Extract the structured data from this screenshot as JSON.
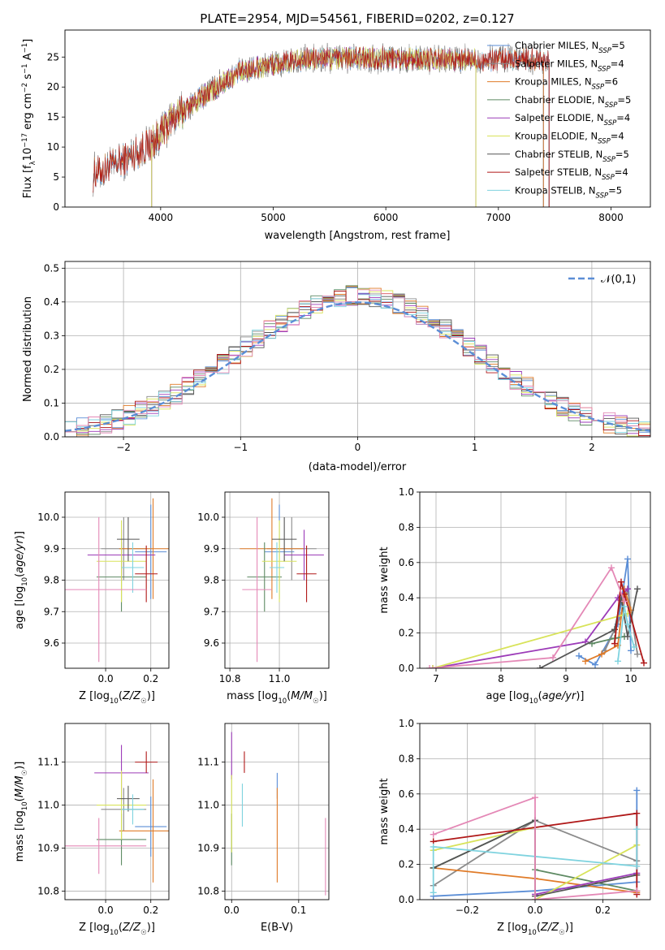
{
  "figure_title": "PLATE=2954, MJD=54561, FIBERID=0202, z=0.127",
  "colors": {
    "chabrier_miles": "#5b8ed6",
    "salpeter_miles": "#8b8b8b",
    "kroupa_miles": "#e07b28",
    "chabrier_elodie": "#5e8a63",
    "salpeter_elodie": "#9c3bb8",
    "kroupa_elodie": "#d8e35a",
    "chabrier_stelib": "#555555",
    "salpeter_stelib": "#b01818",
    "kroupa_stelib": "#7fd3df",
    "pink": "#e488b6",
    "gaussian": "#5b8ed6"
  },
  "chart_data": [
    {
      "id": "spectrum",
      "type": "line",
      "title": "PLATE=2954, MJD=54561, FIBERID=0202, z=0.127",
      "xlabel": "wavelength [Angstrom, rest frame]",
      "ylabel": "Flux [f_λ 10^-17 erg cm^-2 s^-1 A^-1]",
      "xlim": [
        3150,
        8350
      ],
      "ylim": [
        0,
        29.5
      ],
      "xticks": [
        4000,
        5000,
        6000,
        7000,
        8000
      ],
      "yticks": [
        0,
        5,
        10,
        15,
        20,
        25
      ],
      "legend_position": "top-right",
      "legend": [
        {
          "label": "Chabrier MILES, N_SSP=5",
          "color": "#5b8ed6"
        },
        {
          "label": "Salpeter MILES, N_SSP=4",
          "color": "#8b8b8b"
        },
        {
          "label": "Kroupa MILES, N_SSP=6",
          "color": "#e07b28"
        },
        {
          "label": "Chabrier ELODIE, N_SSP=5",
          "color": "#5e8a63"
        },
        {
          "label": "Salpeter ELODIE, N_SSP=4",
          "color": "#9c3bb8"
        },
        {
          "label": "Kroupa ELODIE, N_SSP=4",
          "color": "#d8e35a"
        },
        {
          "label": "Chabrier STELIB, N_SSP=5",
          "color": "#555555"
        },
        {
          "label": "Salpeter STELIB, N_SSP=4",
          "color": "#b01818"
        },
        {
          "label": "Kroupa STELIB, N_SSP=5",
          "color": "#7fd3df"
        }
      ],
      "continuum": {
        "x": [
          3400,
          3600,
          3800,
          3950,
          4100,
          4300,
          4500,
          4700,
          4900,
          5100,
          5300,
          5600,
          6000,
          6400,
          6800,
          7200,
          7600
        ],
        "y": [
          5.5,
          7.0,
          9.2,
          11.0,
          14.5,
          17.5,
          20.0,
          22.5,
          23.5,
          24.0,
          24.6,
          24.8,
          24.8,
          24.6,
          24.5,
          24.8,
          24.5
        ]
      },
      "series_coverage": [
        {
          "name": "Chabrier MILES",
          "x_range": [
            3400,
            7400
          ]
        },
        {
          "name": "Salpeter MILES",
          "x_range": [
            3400,
            7400
          ]
        },
        {
          "name": "Kroupa MILES",
          "x_range": [
            3400,
            7400
          ]
        },
        {
          "name": "Chabrier ELODIE",
          "x_range": [
            3920,
            6800
          ]
        },
        {
          "name": "Salpeter ELODIE",
          "x_range": [
            3920,
            6800
          ]
        },
        {
          "name": "Kroupa ELODIE",
          "x_range": [
            3920,
            6800
          ]
        },
        {
          "name": "Chabrier STELIB",
          "x_range": [
            3400,
            7450
          ]
        },
        {
          "name": "Salpeter STELIB",
          "x_range": [
            3400,
            7450
          ]
        },
        {
          "name": "Kroupa STELIB",
          "x_range": [
            3400,
            7450
          ]
        }
      ]
    },
    {
      "id": "residuals",
      "type": "line",
      "xlabel": "(data-model)/error",
      "ylabel": "Normed distribution",
      "xlim": [
        -2.5,
        2.5
      ],
      "ylim": [
        0,
        0.52
      ],
      "xticks": [
        -2,
        -1,
        0,
        1,
        2
      ],
      "yticks": [
        0.0,
        0.1,
        0.2,
        0.3,
        0.4,
        0.5
      ],
      "grid": true,
      "legend_position": "top-right",
      "legend": [
        {
          "label": "𝒩(0,1)",
          "color": "#5b8ed6",
          "style": "dashed"
        }
      ],
      "histogram_bin_width": 0.1,
      "histogram_series": [
        "Chabrier MILES",
        "Salpeter MILES",
        "Kroupa MILES",
        "Chabrier ELODIE",
        "Salpeter ELODIE",
        "Kroupa ELODIE",
        "Chabrier STELIB",
        "Salpeter STELIB",
        "Kroupa STELIB"
      ]
    },
    {
      "id": "age_vs_Z",
      "type": "scatter",
      "xlabel": "Z [log10(Z/Z☉)]",
      "ylabel": "age [log10(age/yr)]",
      "xlim": [
        -0.18,
        0.28
      ],
      "ylim": [
        9.52,
        10.08
      ],
      "xticks": [
        0.0,
        0.2
      ],
      "yticks": [
        9.6,
        9.7,
        9.8,
        9.9,
        10.0
      ],
      "grid": true,
      "points": [
        {
          "series": "Chabrier MILES",
          "color": "#5b8ed6",
          "x": 0.2,
          "y": 9.89,
          "xerr": 0.07,
          "yerr": 0.15
        },
        {
          "series": "Salpeter MILES",
          "color": "#8b8b8b",
          "x": 0.08,
          "y": 9.9,
          "xerr": 0.1,
          "yerr": 0.1
        },
        {
          "series": "Kroupa MILES",
          "color": "#e07b28",
          "x": 0.21,
          "y": 9.9,
          "xerr": 0.15,
          "yerr": 0.16
        },
        {
          "series": "Chabrier ELODIE",
          "color": "#5e8a63",
          "x": 0.07,
          "y": 9.81,
          "xerr": 0.11,
          "yerr": 0.11
        },
        {
          "series": "Salpeter ELODIE",
          "color": "#9c3bb8",
          "x": 0.07,
          "y": 9.88,
          "xerr": 0.15,
          "yerr": 0.08
        },
        {
          "series": "Kroupa ELODIE",
          "color": "#d8e35a",
          "x": 0.07,
          "y": 9.86,
          "xerr": 0.11,
          "yerr": 0.13
        },
        {
          "series": "Chabrier STELIB",
          "color": "#555555",
          "x": 0.1,
          "y": 9.93,
          "xerr": 0.05,
          "yerr": 0.07
        },
        {
          "series": "Salpeter STELIB",
          "color": "#b01818",
          "x": 0.18,
          "y": 9.82,
          "xerr": 0.05,
          "yerr": 0.09
        },
        {
          "series": "Kroupa STELIB",
          "color": "#7fd3df",
          "x": 0.12,
          "y": 9.84,
          "xerr": 0.05,
          "yerr": 0.08
        },
        {
          "series": "",
          "color": "#e488b6",
          "x": -0.03,
          "y": 9.77,
          "xerr": 0.21,
          "yerr": 0.23
        }
      ]
    },
    {
      "id": "age_vs_mass",
      "type": "scatter",
      "xlabel": "mass [log10(M/M☉)]",
      "ylabel": "",
      "xlim": [
        10.78,
        11.2
      ],
      "ylim": [
        9.52,
        10.08
      ],
      "xticks": [
        10.8,
        11.0
      ],
      "yticks": [
        9.6,
        9.7,
        9.8,
        9.9,
        10.0
      ],
      "grid": true,
      "points": [
        {
          "series": "Chabrier MILES",
          "color": "#5b8ed6",
          "x": 11.0,
          "y": 9.89,
          "xerr": 0.06,
          "yerr": 0.15
        },
        {
          "series": "Salpeter MILES",
          "color": "#8b8b8b",
          "x": 11.05,
          "y": 9.9,
          "xerr": 0.1,
          "yerr": 0.1
        },
        {
          "series": "Kroupa MILES",
          "color": "#e07b28",
          "x": 10.97,
          "y": 9.9,
          "xerr": 0.13,
          "yerr": 0.16
        },
        {
          "series": "Chabrier ELODIE",
          "color": "#5e8a63",
          "x": 10.94,
          "y": 9.81,
          "xerr": 0.07,
          "yerr": 0.11
        },
        {
          "series": "Salpeter ELODIE",
          "color": "#9c3bb8",
          "x": 11.1,
          "y": 9.88,
          "xerr": 0.08,
          "yerr": 0.08
        },
        {
          "series": "Kroupa ELODIE",
          "color": "#d8e35a",
          "x": 11.0,
          "y": 9.86,
          "xerr": 0.07,
          "yerr": 0.13
        },
        {
          "series": "Chabrier STELIB",
          "color": "#555555",
          "x": 11.02,
          "y": 9.93,
          "xerr": 0.05,
          "yerr": 0.07
        },
        {
          "series": "Salpeter STELIB",
          "color": "#b01818",
          "x": 11.11,
          "y": 9.82,
          "xerr": 0.04,
          "yerr": 0.09
        },
        {
          "series": "Kroupa STELIB",
          "color": "#7fd3df",
          "x": 10.99,
          "y": 9.84,
          "xerr": 0.03,
          "yerr": 0.08
        },
        {
          "series": "",
          "color": "#e488b6",
          "x": 10.91,
          "y": 9.77,
          "xerr": 0.06,
          "yerr": 0.23
        }
      ]
    },
    {
      "id": "weight_vs_age",
      "type": "line",
      "xlabel": "age [log10(age/yr)]",
      "ylabel": "mass weight",
      "xlim": [
        6.75,
        10.3
      ],
      "ylim": [
        0,
        1.0
      ],
      "xticks": [
        7,
        8,
        9,
        10
      ],
      "yticks": [
        0.0,
        0.2,
        0.4,
        0.6,
        0.8,
        1.0
      ],
      "grid": true,
      "series": [
        {
          "name": "Chabrier MILES",
          "color": "#5b8ed6",
          "x": [
            9.2,
            9.45,
            9.8,
            9.95,
            10.0
          ],
          "y": [
            0.07,
            0.02,
            0.25,
            0.62,
            0.1
          ]
        },
        {
          "name": "Salpeter MILES",
          "color": "#8b8b8b",
          "x": [
            9.6,
            9.85,
            9.95,
            10.1
          ],
          "y": [
            0.1,
            0.3,
            0.45,
            0.08
          ]
        },
        {
          "name": "Kroupa MILES",
          "color": "#e07b28",
          "x": [
            9.3,
            9.55,
            9.8,
            9.9,
            10.0
          ],
          "y": [
            0.04,
            0.08,
            0.13,
            0.45,
            0.33
          ]
        },
        {
          "name": "Chabrier ELODIE",
          "color": "#5e8a63",
          "x": [
            9.4,
            9.75,
            9.9
          ],
          "y": [
            0.14,
            0.17,
            0.18
          ]
        },
        {
          "name": "Salpeter ELODIE",
          "color": "#9c3bb8",
          "x": [
            6.95,
            9.3,
            9.8,
            9.95
          ],
          "y": [
            0.0,
            0.15,
            0.4,
            0.45
          ]
        },
        {
          "name": "Kroupa ELODIE",
          "color": "#d8e35a",
          "x": [
            6.95,
            9.95,
            9.88
          ],
          "y": [
            0.0,
            0.31,
            0.3
          ]
        },
        {
          "name": "Chabrier STELIB",
          "color": "#555555",
          "x": [
            8.6,
            9.75,
            9.85,
            9.95,
            10.1
          ],
          "y": [
            0.0,
            0.22,
            0.4,
            0.18,
            0.45
          ]
        },
        {
          "name": "Salpeter STELIB",
          "color": "#b01818",
          "x": [
            9.75,
            9.85,
            9.9,
            10.2
          ],
          "y": [
            0.14,
            0.49,
            0.42,
            0.03
          ]
        },
        {
          "name": "Kroupa STELIB",
          "color": "#7fd3df",
          "x": [
            9.8,
            9.9,
            9.95,
            10.05
          ],
          "y": [
            0.04,
            0.35,
            0.25,
            0.12
          ]
        },
        {
          "name": "",
          "color": "#e488b6",
          "x": [
            6.9,
            8.8,
            9.7,
            9.9
          ],
          "y": [
            0.0,
            0.06,
            0.57,
            0.38
          ]
        }
      ]
    },
    {
      "id": "mass_vs_Z",
      "type": "scatter",
      "xlabel": "Z [log10(Z/Z☉)]",
      "ylabel": "mass [log10(M/M☉)]",
      "xlim": [
        -0.18,
        0.28
      ],
      "ylim": [
        10.78,
        11.19
      ],
      "xticks": [
        0.0,
        0.2
      ],
      "yticks": [
        10.8,
        10.9,
        11.0,
        11.1
      ],
      "grid": true,
      "points": [
        {
          "series": "Chabrier MILES",
          "color": "#5b8ed6",
          "x": 0.2,
          "y": 10.95,
          "xerr": 0.07,
          "yerr": 0.07
        },
        {
          "series": "Salpeter MILES",
          "color": "#8b8b8b",
          "x": 0.08,
          "y": 10.99,
          "xerr": 0.1,
          "yerr": 0.05
        },
        {
          "series": "Kroupa MILES",
          "color": "#e07b28",
          "x": 0.21,
          "y": 10.94,
          "xerr": 0.15,
          "yerr": 0.12
        },
        {
          "series": "Chabrier ELODIE",
          "color": "#5e8a63",
          "x": 0.07,
          "y": 10.92,
          "xerr": 0.11,
          "yerr": 0.06
        },
        {
          "series": "Salpeter ELODIE",
          "color": "#9c3bb8",
          "x": 0.07,
          "y": 11.075,
          "xerr": 0.12,
          "yerr": 0.065
        },
        {
          "series": "Kroupa ELODIE",
          "color": "#d8e35a",
          "x": 0.07,
          "y": 11.0,
          "xerr": 0.11,
          "yerr": 0.08
        },
        {
          "series": "Chabrier STELIB",
          "color": "#555555",
          "x": 0.1,
          "y": 11.015,
          "xerr": 0.05,
          "yerr": 0.03
        },
        {
          "series": "Salpeter STELIB",
          "color": "#b01818",
          "x": 0.18,
          "y": 11.1,
          "xerr": 0.05,
          "yerr": 0.025
        },
        {
          "series": "Kroupa STELIB",
          "color": "#7fd3df",
          "x": 0.12,
          "y": 10.99,
          "xerr": 0.05,
          "yerr": 0.035
        },
        {
          "series": "",
          "color": "#e488b6",
          "x": -0.03,
          "y": 10.905,
          "xerr": 0.21,
          "yerr": 0.065
        }
      ]
    },
    {
      "id": "mass_vs_ebv",
      "type": "scatter",
      "xlabel": "E(B-V)",
      "ylabel": "",
      "xlim": [
        -0.01,
        0.145
      ],
      "ylim": [
        10.78,
        11.19
      ],
      "xticks": [
        0.0,
        0.1
      ],
      "yticks": [
        10.8,
        10.9,
        11.0,
        11.1
      ],
      "grid": true,
      "points": [
        {
          "series": "Chabrier MILES",
          "color": "#5b8ed6",
          "x": 0.068,
          "y": 11.045,
          "xerr": 0,
          "yerr": 0.03
        },
        {
          "series": "Kroupa MILES",
          "color": "#e07b28",
          "x": 0.068,
          "y": 10.93,
          "xerr": 0,
          "yerr": 0.11
        },
        {
          "series": "Chabrier ELODIE",
          "color": "#5e8a63",
          "x": 0.0,
          "y": 10.92,
          "xerr": 0,
          "yerr": 0.06
        },
        {
          "series": "Salpeter ELODIE",
          "color": "#9c3bb8",
          "x": 0.0,
          "y": 11.115,
          "xerr": 0,
          "yerr": 0.055
        },
        {
          "series": "Kroupa ELODIE",
          "color": "#d8e35a",
          "x": 0.0,
          "y": 10.98,
          "xerr": 0,
          "yerr": 0.09
        },
        {
          "series": "Salpeter STELIB",
          "color": "#b01818",
          "x": 0.019,
          "y": 11.1,
          "xerr": 0,
          "yerr": 0.025
        },
        {
          "series": "Kroupa STELIB",
          "color": "#7fd3df",
          "x": 0.016,
          "y": 11.0,
          "xerr": 0,
          "yerr": 0.05
        },
        {
          "series": "",
          "color": "#e488b6",
          "x": 0.14,
          "y": 10.88,
          "xerr": 0,
          "yerr": 0.09
        }
      ]
    },
    {
      "id": "weight_vs_Z",
      "type": "line",
      "xlabel": "Z [log10(Z/Z☉)]",
      "ylabel": "mass weight",
      "xlim": [
        -0.34,
        0.34
      ],
      "ylim": [
        0,
        1.0
      ],
      "xticks": [
        -0.2,
        0.0,
        0.2
      ],
      "yticks": [
        0.0,
        0.2,
        0.4,
        0.6,
        0.8,
        1.0
      ],
      "grid": true,
      "series": [
        {
          "name": "Chabrier MILES",
          "color": "#5b8ed6",
          "x": [
            -0.3,
            0.0,
            0.3,
            0.3
          ],
          "y": [
            0.02,
            0.05,
            0.1,
            0.62
          ]
        },
        {
          "name": "Salpeter MILES",
          "color": "#8b8b8b",
          "x": [
            -0.3,
            0.0,
            0.3
          ],
          "y": [
            0.08,
            0.45,
            0.22
          ]
        },
        {
          "name": "Kroupa MILES",
          "color": "#e07b28",
          "x": [
            -0.3,
            0.0,
            0.3
          ],
          "y": [
            0.18,
            0.12,
            0.04
          ]
        },
        {
          "name": "Chabrier ELODIE",
          "color": "#5e8a63",
          "x": [
            -0.3,
            0.0,
            0.0,
            0.3
          ],
          "y": [
            0.18,
            0.45,
            0.17,
            0.05
          ]
        },
        {
          "name": "Salpeter ELODIE",
          "color": "#9c3bb8",
          "x": [
            0.0,
            0.3
          ],
          "y": [
            0.03,
            0.15
          ]
        },
        {
          "name": "Kroupa ELODIE",
          "color": "#d8e35a",
          "x": [
            -0.3,
            0.0,
            0.0,
            0.3
          ],
          "y": [
            0.28,
            0.41,
            0.0,
            0.31
          ]
        },
        {
          "name": "Chabrier STELIB",
          "color": "#555555",
          "x": [
            -0.3,
            0.0,
            0.0,
            0.3
          ],
          "y": [
            0.18,
            0.45,
            0.02,
            0.14
          ]
        },
        {
          "name": "Salpeter STELIB",
          "color": "#b01818",
          "x": [
            -0.3,
            0.3,
            0.3
          ],
          "y": [
            0.33,
            0.49,
            0.03
          ]
        },
        {
          "name": "Kroupa STELIB",
          "color": "#7fd3df",
          "x": [
            -0.3,
            -0.3,
            0.3,
            0.3
          ],
          "y": [
            0.04,
            0.3,
            0.19,
            0.4
          ]
        },
        {
          "name": "",
          "color": "#e488b6",
          "x": [
            -0.3,
            0.0,
            0.0,
            0.3
          ],
          "y": [
            0.37,
            0.58,
            0.0,
            0.05
          ]
        }
      ]
    }
  ]
}
